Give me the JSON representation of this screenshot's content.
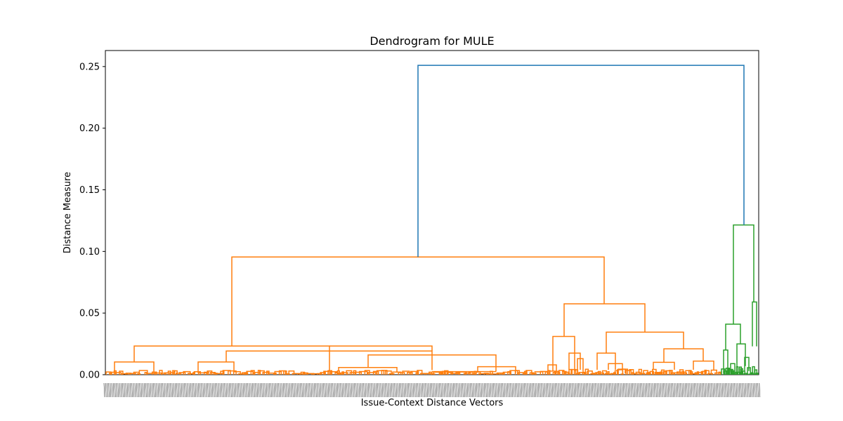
{
  "chart_data": {
    "type": "dendrogram",
    "title": "Dendrogram for MULE",
    "xlabel": "Issue-Context Distance Vectors",
    "ylabel": "Distance Measure",
    "ylim": [
      0,
      0.263
    ],
    "yticks": [
      0.0,
      0.05,
      0.1,
      0.15,
      0.2,
      0.25
    ],
    "ytick_labels": [
      "0.00",
      "0.05",
      "0.10",
      "0.15",
      "0.20",
      "0.25"
    ],
    "grid": false,
    "colors": {
      "root": "#1f77b4",
      "cluster_1": "#ff7f0e",
      "cluster_2": "#2ca02c"
    },
    "root_height": 0.251,
    "clusters": [
      {
        "name": "cluster_1",
        "color": "#ff7f0e",
        "merge_height": 0.0955
      },
      {
        "name": "cluster_2",
        "color": "#2ca02c",
        "merge_height": 0.1215
      }
    ]
  }
}
